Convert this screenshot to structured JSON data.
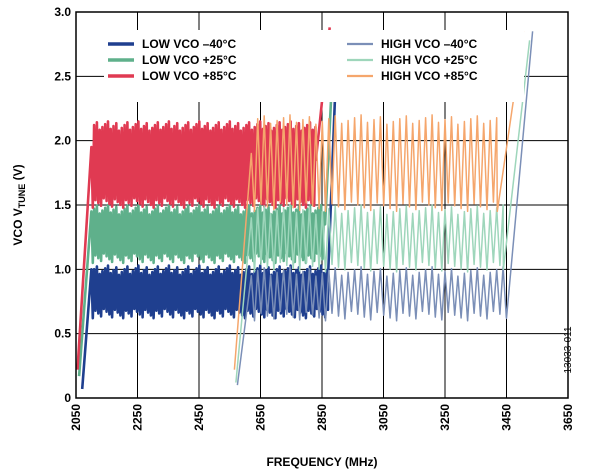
{
  "chart_data": {
    "type": "line",
    "xlabel": "FREQUENCY (MHz)",
    "ylabel_prefix": "VCO V",
    "ylabel_sub": "TUNE",
    "ylabel_suffix": " (V)",
    "xlim": [
      2050,
      3650
    ],
    "ylim": [
      0,
      3.0
    ],
    "x_ticks": [
      "2050",
      "2250",
      "2450",
      "2650",
      "2850",
      "3050",
      "3250",
      "3450",
      "3650"
    ],
    "y_ticks": [
      "0",
      "0.5",
      "1.0",
      "1.5",
      "2.0",
      "2.5",
      "3.0"
    ],
    "grid": true,
    "legend_position": "top",
    "figure_id": "13033-011",
    "series": [
      {
        "name": "LOW VCO –40°C",
        "color": "#1f3f8f",
        "width": 2.6,
        "x": [
          2070,
          2100,
          2870,
          2900
        ],
        "y": [
          0.07,
          1.0,
          0.95,
          2.82
        ],
        "osc": {
          "start": 2100,
          "end": 2870,
          "lo": 0.62,
          "hi": 1.03,
          "period": 9
        }
      },
      {
        "name": "LOW VCO +25°C",
        "color": "#5fb08b",
        "width": 2.6,
        "x": [
          2060,
          2100,
          2860,
          2890
        ],
        "y": [
          0.17,
          1.45,
          1.35,
          2.85
        ],
        "osc": {
          "start": 2100,
          "end": 2860,
          "lo": 1.05,
          "hi": 1.5,
          "period": 9
        }
      },
      {
        "name": "LOW VCO +85°C",
        "color": "#e03a52",
        "width": 2.6,
        "x": [
          2055,
          2100,
          2830,
          2875
        ],
        "y": [
          0.22,
          1.95,
          1.85,
          2.88
        ],
        "osc": {
          "start": 2100,
          "end": 2830,
          "lo": 1.48,
          "hi": 2.15,
          "period": 9
        }
      },
      {
        "name": "HIGH VCO –40°C",
        "color": "#7b8fb7",
        "width": 1.5,
        "x": [
          2575,
          2620,
          3450,
          3535
        ],
        "y": [
          0.1,
          0.95,
          0.62,
          2.85
        ],
        "osc": {
          "start": 2620,
          "end": 3450,
          "lo": 0.6,
          "hi": 1.02,
          "period": 21
        }
      },
      {
        "name": "HIGH VCO +25°C",
        "color": "#9ed6bb",
        "width": 1.5,
        "x": [
          2570,
          2620,
          3440,
          3525
        ],
        "y": [
          0.12,
          1.4,
          1.0,
          2.78
        ],
        "osc": {
          "start": 2620,
          "end": 3440,
          "lo": 0.98,
          "hi": 1.5,
          "period": 21
        }
      },
      {
        "name": "HIGH VCO +85°C",
        "color": "#f5a66c",
        "width": 1.5,
        "x": [
          2565,
          2620,
          3420,
          3505
        ],
        "y": [
          0.22,
          1.9,
          1.45,
          2.85
        ],
        "osc": {
          "start": 2620,
          "end": 3420,
          "lo": 1.45,
          "hi": 2.2,
          "period": 21
        }
      }
    ]
  }
}
